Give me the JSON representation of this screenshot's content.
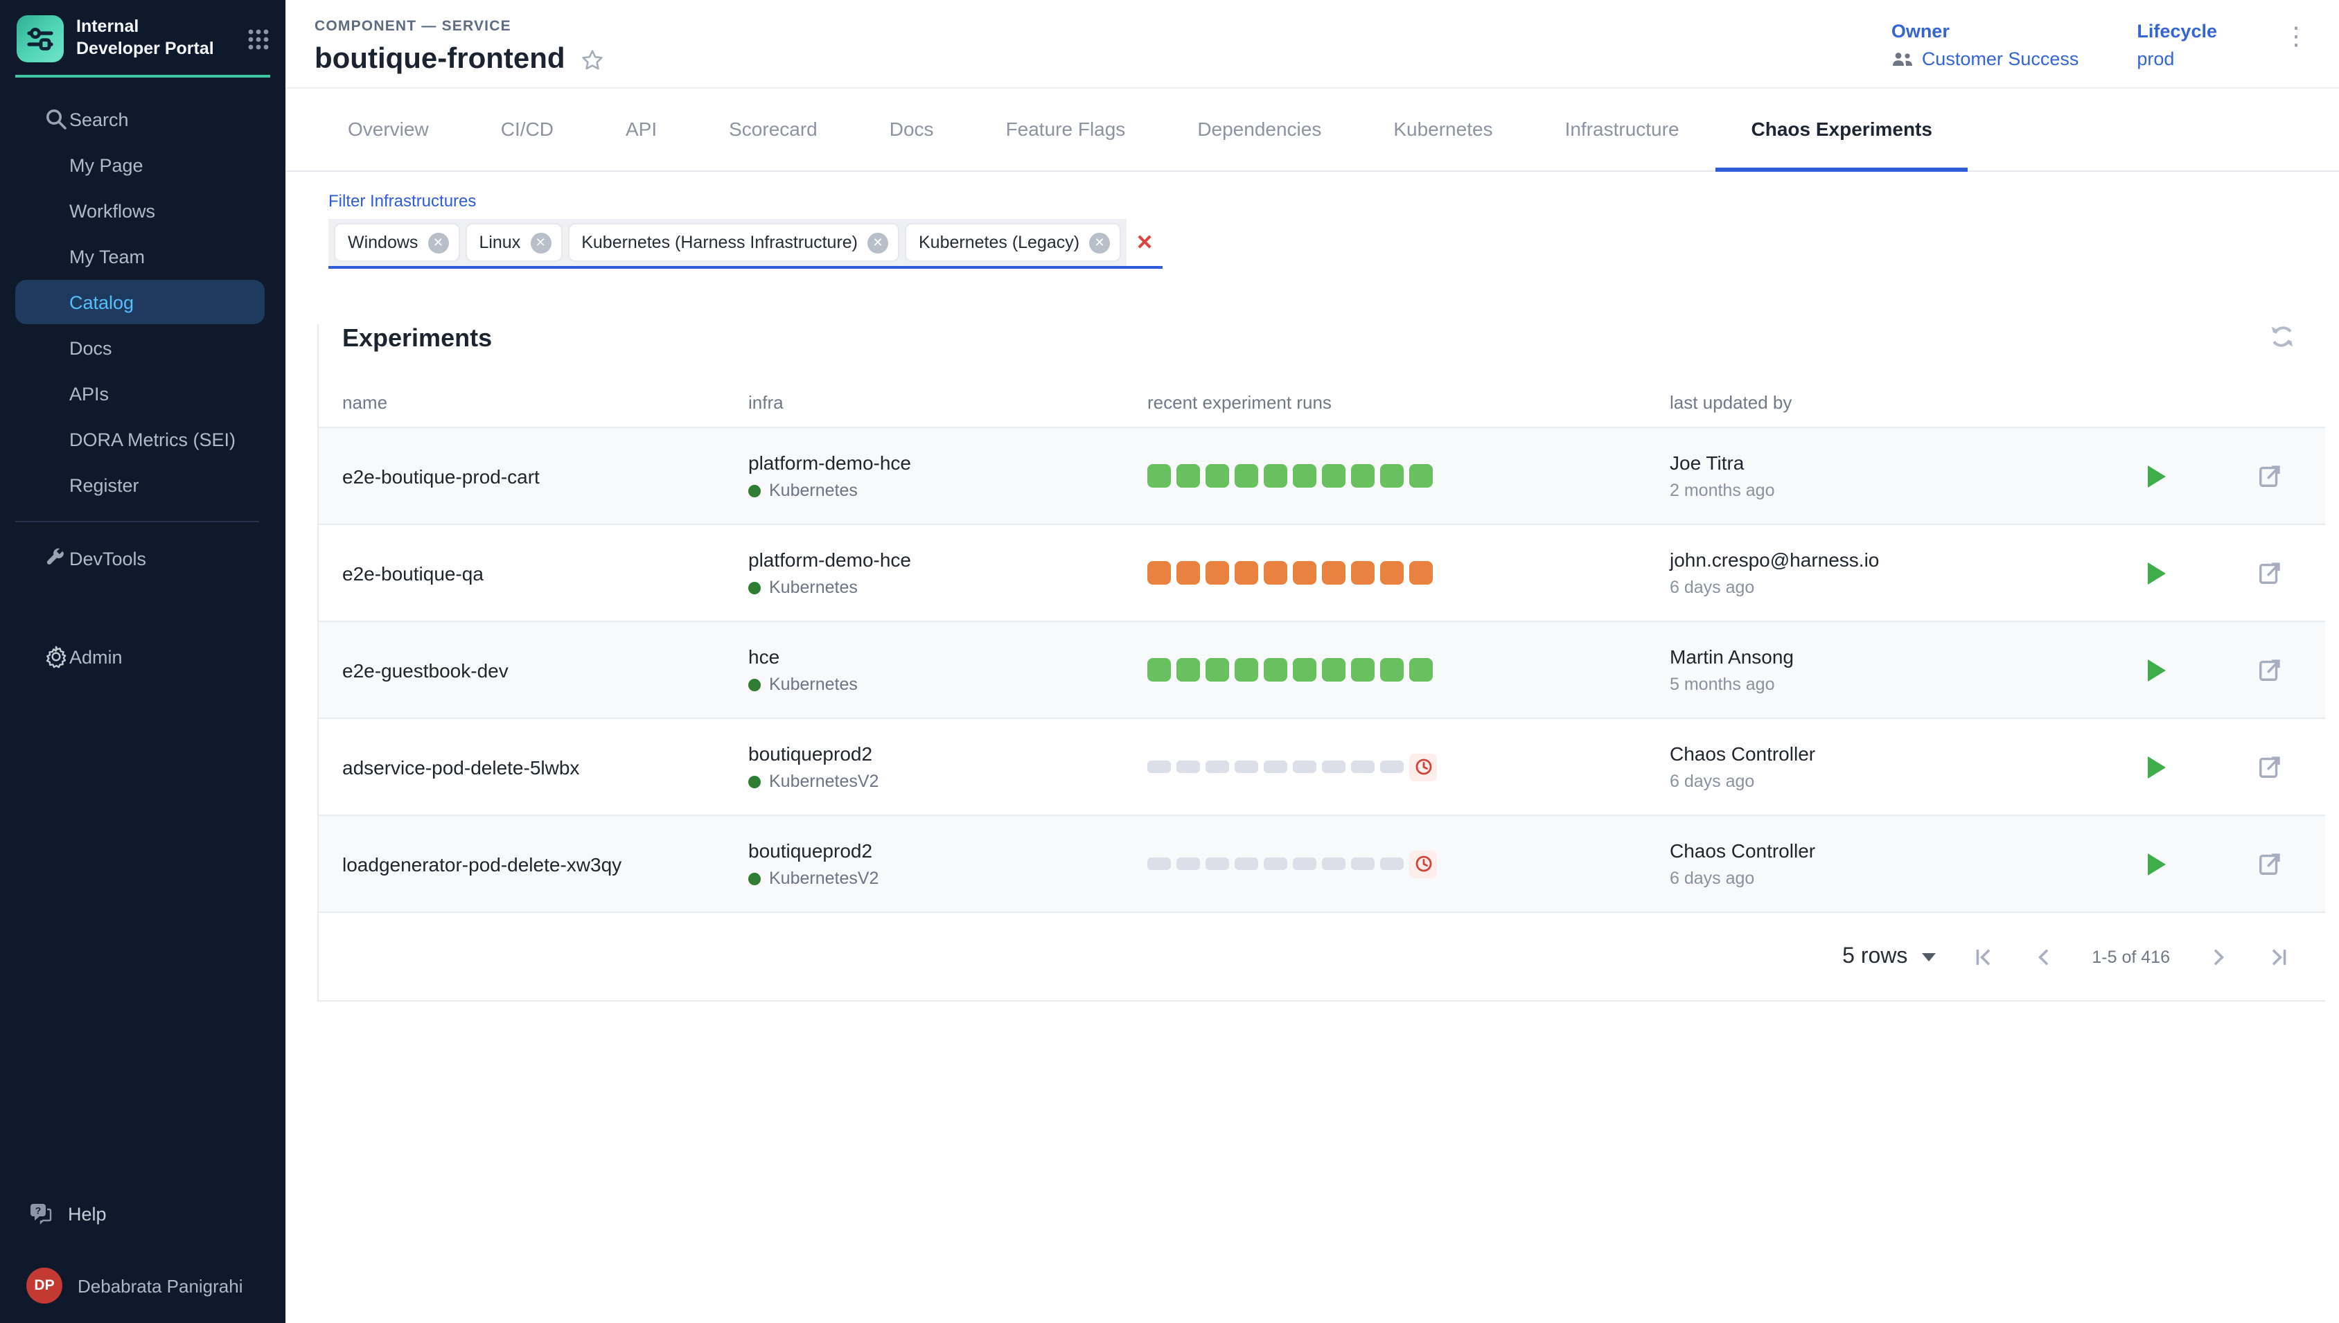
{
  "sidebar": {
    "logo_title": "Internal Developer Portal",
    "items": [
      {
        "label": "Search",
        "icon": "search"
      },
      {
        "label": "My Page"
      },
      {
        "label": "Workflows"
      },
      {
        "label": "My Team"
      },
      {
        "label": "Catalog",
        "active": true
      },
      {
        "label": "Docs"
      },
      {
        "label": "APIs"
      },
      {
        "label": "DORA Metrics (SEI)"
      },
      {
        "label": "Register"
      },
      {
        "label": "DevTools",
        "icon": "wrench",
        "divider_before": true
      },
      {
        "label": "Admin",
        "icon": "gear",
        "gap_before": true
      }
    ],
    "help_label": "Help",
    "user": {
      "initials": "DP",
      "name": "Debabrata Panigrahi"
    }
  },
  "header": {
    "breadcrumb": "COMPONENT — SERVICE",
    "title": "boutique-frontend",
    "owner": {
      "label": "Owner",
      "value": "Customer Success"
    },
    "lifecycle": {
      "label": "Lifecycle",
      "value": "prod"
    }
  },
  "tabs": [
    {
      "label": "Overview"
    },
    {
      "label": "CI/CD"
    },
    {
      "label": "API"
    },
    {
      "label": "Scorecard"
    },
    {
      "label": "Docs"
    },
    {
      "label": "Feature Flags"
    },
    {
      "label": "Dependencies"
    },
    {
      "label": "Kubernetes"
    },
    {
      "label": "Infrastructure"
    },
    {
      "label": "Chaos Experiments",
      "active": true
    }
  ],
  "filter": {
    "label": "Filter Infrastructures",
    "chips": [
      "Windows",
      "Linux",
      "Kubernetes (Harness Infrastructure)",
      "Kubernetes (Legacy)"
    ]
  },
  "experiments": {
    "title": "Experiments",
    "columns": [
      "name",
      "infra",
      "recent experiment runs",
      "last updated by"
    ],
    "rows": [
      {
        "name": "e2e-boutique-prod-cart",
        "infra_name": "platform-demo-hce",
        "infra_type": "Kubernetes",
        "runs": {
          "status": "passed",
          "count": 10,
          "clock": false
        },
        "updated_by": "Joe Titra",
        "updated_at": "2 months ago"
      },
      {
        "name": "e2e-boutique-qa",
        "infra_name": "platform-demo-hce",
        "infra_type": "Kubernetes",
        "runs": {
          "status": "failed",
          "count": 10,
          "clock": false
        },
        "updated_by": "john.crespo@harness.io",
        "updated_at": "6 days ago"
      },
      {
        "name": "e2e-guestbook-dev",
        "infra_name": "hce",
        "infra_type": "Kubernetes",
        "runs": {
          "status": "passed",
          "count": 10,
          "clock": false
        },
        "updated_by": "Martin Ansong",
        "updated_at": "5 months ago"
      },
      {
        "name": "adservice-pod-delete-5lwbx",
        "infra_name": "boutiqueprod2",
        "infra_type": "KubernetesV2",
        "runs": {
          "status": "pending",
          "count": 9,
          "clock": true
        },
        "updated_by": "Chaos Controller",
        "updated_at": "6 days ago"
      },
      {
        "name": "loadgenerator-pod-delete-xw3qy",
        "infra_name": "boutiqueprod2",
        "infra_type": "KubernetesV2",
        "runs": {
          "status": "pending",
          "count": 9,
          "clock": true
        },
        "updated_by": "Chaos Controller",
        "updated_at": "6 days ago"
      }
    ],
    "pagination": {
      "rows_per_page": "5 rows",
      "range": "1-5 of 416"
    }
  },
  "colors": {
    "passed": "#68c05f",
    "failed": "#e8823e",
    "pending": "#dcdee8",
    "accent_blue": "#2e5bd7",
    "sidebar_active_text": "#56befa",
    "clock_red": "#cf4338"
  }
}
